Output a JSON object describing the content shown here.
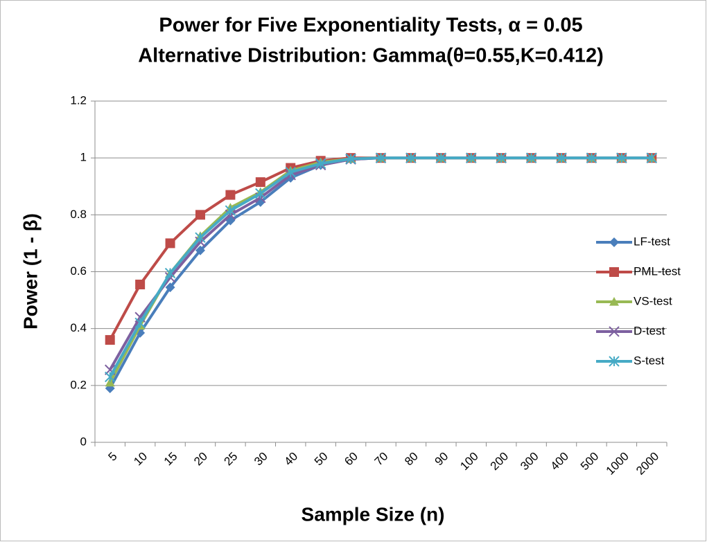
{
  "chart_data": {
    "type": "line",
    "title": "Power for Five Exponentiality Tests, α = 0.05",
    "subtitle": "Alternative Distribution: Gamma(θ=0.55,K=0.412)",
    "x_label": "Sample Size (n)",
    "y_label": "Power (1 - β)",
    "categories": [
      "5",
      "10",
      "15",
      "20",
      "25",
      "30",
      "40",
      "50",
      "60",
      "70",
      "80",
      "90",
      "100",
      "200",
      "300",
      "400",
      "500",
      "1000",
      "2000"
    ],
    "ylim": [
      0,
      1.2
    ],
    "yticks": [
      0,
      0.2,
      0.4,
      0.6,
      0.8,
      1,
      1.2
    ],
    "grid": true,
    "legend": "right",
    "series": [
      {
        "name": "LF-test",
        "color": "#4a7ebb",
        "marker": "diamond",
        "values": [
          0.19,
          0.385,
          0.545,
          0.675,
          0.78,
          0.845,
          0.93,
          0.975,
          0.995,
          1,
          1,
          1,
          1,
          1,
          1,
          1,
          1,
          1,
          1
        ]
      },
      {
        "name": "PML-test",
        "color": "#be4b48",
        "marker": "square",
        "values": [
          0.36,
          0.555,
          0.7,
          0.8,
          0.87,
          0.915,
          0.965,
          0.99,
          1,
          1,
          1,
          1,
          1,
          1,
          1,
          1,
          1,
          1,
          1
        ]
      },
      {
        "name": "VS-test",
        "color": "#98b954",
        "marker": "triangle",
        "values": [
          0.21,
          0.41,
          0.595,
          0.725,
          0.825,
          0.88,
          0.955,
          0.985,
          0.997,
          1,
          1,
          1,
          1,
          1,
          1,
          1,
          1,
          1,
          1
        ]
      },
      {
        "name": "D-test",
        "color": "#7d60a0",
        "marker": "x",
        "values": [
          0.255,
          0.44,
          0.58,
          0.705,
          0.8,
          0.86,
          0.94,
          0.975,
          0.995,
          1,
          1,
          1,
          1,
          1,
          1,
          1,
          1,
          1,
          1
        ]
      },
      {
        "name": "S-test",
        "color": "#46aac5",
        "marker": "star",
        "values": [
          0.23,
          0.42,
          0.595,
          0.72,
          0.815,
          0.875,
          0.95,
          0.98,
          0.997,
          1,
          1,
          1,
          1,
          1,
          1,
          1,
          1,
          1,
          1
        ]
      }
    ]
  }
}
